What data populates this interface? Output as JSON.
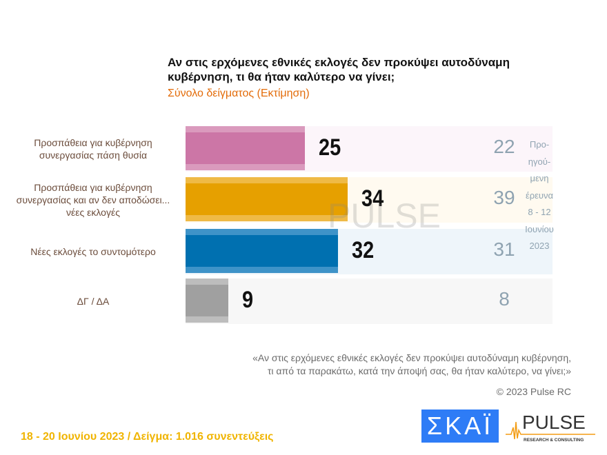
{
  "title": "Αν στις ερχόμενες εθνικές εκλογές δεν προκύψει αυτοδύναμη κυβέρνηση, τι θα ήταν καλύτερο να γίνει;",
  "subtitle": "Σύνολο δείγματος   (Εκτίμηση)",
  "chart_data": {
    "type": "bar",
    "orientation": "horizontal",
    "xlim": [
      0,
      77
    ],
    "categories": [
      "Προσπάθεια για κυβέρνηση συνεργασίας πάση θυσία",
      "Προσπάθεια για κυβέρνηση συνεργασίας και αν δεν αποδώσει... νέες εκλογές",
      "Νέες εκλογές το συντομότερο",
      "ΔΓ / ΔΑ"
    ],
    "values": [
      25,
      34,
      32,
      9
    ],
    "previous": [
      22,
      39,
      31,
      8
    ],
    "colors": [
      "#cc76a6",
      "#e6a000",
      "#0070b0",
      "#a0a0a0"
    ],
    "bg_colors": [
      "#fcf5fa",
      "#fffaf0",
      "#eef5fa",
      "#f7f7f7"
    ],
    "stripe_colors": [
      "#da9abd",
      "#efba46",
      "#3e93c8",
      "#bdbdbd"
    ],
    "previous_note": [
      "Προ-",
      "ηγού-",
      "μενη",
      "έρευνα",
      "8 - 12",
      "Ιουνίου",
      "2023"
    ]
  },
  "footnote": [
    "«Αν στις ερχόμενες εθνικές εκλογές δεν προκύψει αυτοδύναμη κυβέρνηση,",
    "τι από τα παρακάτω, κατά την άποψή σας, θα ήταν καλύτερο, να γίνει;»"
  ],
  "copyright": "© 2023 Pulse RC",
  "footer": "18 - 20  Ιουνίου  2023  /  Δείγμα:  1.016 συνεντεύξεις",
  "logos": {
    "skai": "ΣΚΑΪ",
    "pulse": "PULSE",
    "pulse_sub": "RESEARCH & CONSULTING"
  }
}
